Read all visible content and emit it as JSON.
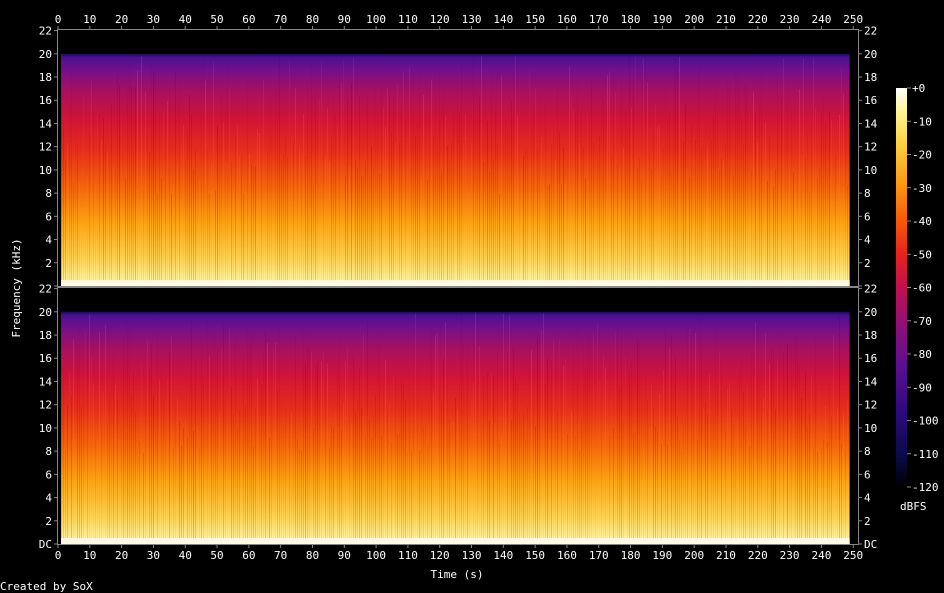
{
  "chart_data": {
    "type": "heatmap",
    "xlabel": "Time (s)",
    "ylabel": "Frequency (kHz)",
    "x_ticks": [
      0,
      10,
      20,
      30,
      40,
      50,
      60,
      70,
      80,
      90,
      100,
      110,
      120,
      130,
      140,
      150,
      160,
      170,
      180,
      190,
      200,
      210,
      220,
      230,
      240,
      250
    ],
    "xlim": [
      0,
      251.5
    ],
    "x_data_end": 249.5,
    "ylim_khz": [
      0,
      22.05
    ],
    "bandwidth_khz": 20,
    "y_tick_values": [
      0,
      2,
      4,
      6,
      8,
      10,
      12,
      14,
      16,
      18,
      20,
      22
    ],
    "y_tick_labels": {
      "channel_top": [
        "",
        "2",
        "4",
        "6",
        "8",
        "10",
        "12",
        "14",
        "16",
        "18",
        "20",
        "22"
      ],
      "channel_bottom": [
        "DC",
        "2",
        "4",
        "6",
        "8",
        "10",
        "12",
        "14",
        "16",
        "18",
        "20",
        "22"
      ]
    },
    "channels": 2,
    "colorbar": {
      "unit": "dBFS",
      "range_db": [
        -120,
        0
      ],
      "ticks": [
        "+0",
        "-10",
        "-20",
        "-30",
        "-40",
        "-50",
        "-60",
        "-70",
        "-80",
        "-90",
        "-100",
        "-110",
        "-120"
      ],
      "colors": [
        "#000000",
        "#0a0a4a",
        "#2a0a7a",
        "#5a0f90",
        "#8c0f7a",
        "#c0104e",
        "#e8201e",
        "#f85a08",
        "#fc9a10",
        "#fdd040",
        "#fff490",
        "#ffffff"
      ]
    },
    "grid": false
  },
  "footer": {
    "credit": "Created by SoX"
  }
}
